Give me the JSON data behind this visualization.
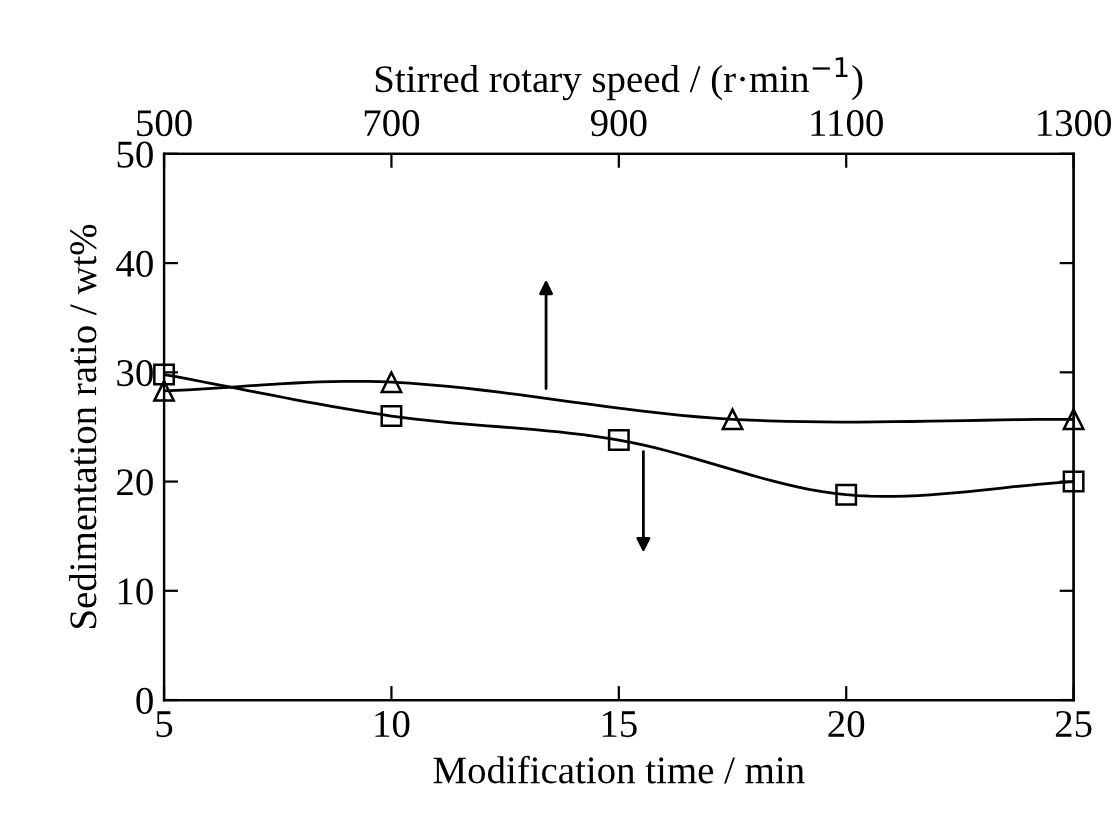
{
  "chart_data": {
    "type": "line",
    "xlabel": "Modification time / min",
    "x2label": "Stirred rotary speed / (r·min$^{−1}$)",
    "ylabel": "Sedimentation ratio / wt%",
    "xlim": [
      5,
      25
    ],
    "xticks": [
      5,
      10,
      15,
      20,
      25
    ],
    "x2lim": [
      500,
      1300
    ],
    "x2ticks": [
      500,
      700,
      900,
      1100,
      1300
    ],
    "ylim": [
      0,
      50
    ],
    "yticks": [
      0,
      10,
      20,
      30,
      40,
      50
    ],
    "grid": false,
    "line_style": "solid",
    "series": [
      {
        "color": "#000000",
        "marker": "square",
        "x": [
          5,
          10,
          15,
          20,
          25
        ],
        "values": [
          29.8,
          26.0,
          23.8,
          18.8,
          20.0
        ]
      },
      {
        "color": "#000000",
        "marker": "triangle",
        "axis": "x2",
        "x": [
          500,
          700,
          1000,
          1300
        ],
        "values": [
          28.3,
          29.1,
          25.7,
          25.7
        ]
      }
    ]
  }
}
